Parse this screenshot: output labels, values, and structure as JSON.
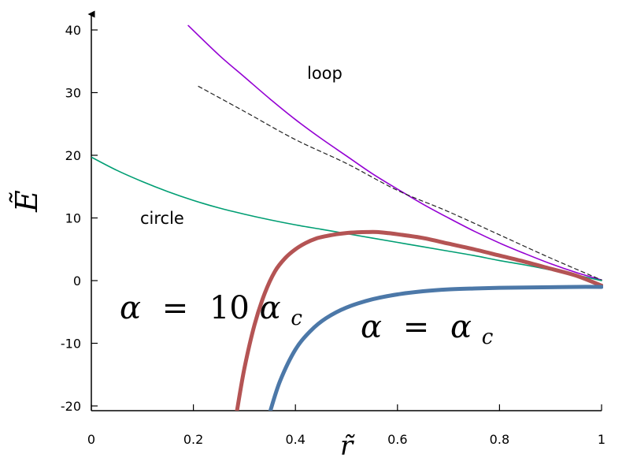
{
  "chart_data": {
    "type": "line",
    "xlabel": "r̃",
    "ylabel": "Ẽ",
    "xlim": [
      0,
      1
    ],
    "ylim": [
      -21,
      44
    ],
    "grid": false,
    "x_ticks": [
      "0",
      "0.2",
      "0.4",
      "0.6",
      "0.8",
      "1"
    ],
    "y_ticks": [
      "-20",
      "-10",
      "0",
      "10",
      "20",
      "30",
      "40"
    ],
    "series": [
      {
        "name": "loop",
        "color": "#9400d3",
        "style": "solid",
        "x": [
          0.19,
          0.25,
          0.3,
          0.35,
          0.4,
          0.45,
          0.5,
          0.55,
          0.6,
          0.65,
          0.7,
          0.75,
          0.8,
          0.85,
          0.9,
          0.95,
          1.0
        ],
        "y": [
          40.7,
          36.0,
          32.5,
          29.0,
          25.7,
          22.7,
          19.9,
          17.1,
          14.6,
          12.2,
          10.0,
          7.9,
          6.0,
          4.3,
          2.7,
          1.3,
          0.1
        ]
      },
      {
        "name": "",
        "color": "#222222",
        "style": "dashed",
        "x": [
          0.21,
          0.3,
          0.4,
          0.5,
          0.6,
          0.7,
          0.8,
          0.9,
          1.0
        ],
        "y": [
          31.0,
          27.0,
          22.5,
          18.7,
          14.4,
          11.0,
          7.3,
          3.6,
          0.1
        ]
      },
      {
        "name": "circle",
        "color": "#009e73",
        "style": "solid",
        "x": [
          0.0,
          0.05,
          0.1,
          0.15,
          0.2,
          0.25,
          0.3,
          0.35,
          0.4,
          0.45,
          0.5,
          0.55,
          0.6,
          0.65,
          0.7,
          0.75,
          0.8,
          0.85,
          0.9,
          0.95,
          1.0
        ],
        "y": [
          19.7,
          17.6,
          15.8,
          14.2,
          12.8,
          11.6,
          10.6,
          9.7,
          8.9,
          8.2,
          7.5,
          6.8,
          6.1,
          5.4,
          4.7,
          4.0,
          3.2,
          2.5,
          1.7,
          0.9,
          0.0
        ]
      },
      {
        "name": "α = 10α_c",
        "color": "#b45454",
        "style": "thick",
        "x": [
          0.285,
          0.3,
          0.32,
          0.34,
          0.36,
          0.38,
          0.4,
          0.42,
          0.44,
          0.46,
          0.48,
          0.5,
          0.52,
          0.54,
          0.56,
          0.58,
          0.6,
          0.65,
          0.7,
          0.75,
          0.8,
          0.85,
          0.9,
          0.95,
          1.0
        ],
        "y": [
          -21.0,
          -14.0,
          -7.0,
          -2.0,
          1.5,
          3.6,
          5.0,
          6.0,
          6.7,
          7.1,
          7.4,
          7.6,
          7.7,
          7.75,
          7.75,
          7.6,
          7.4,
          6.8,
          5.9,
          5.0,
          4.0,
          3.0,
          1.9,
          0.8,
          -0.8
        ]
      },
      {
        "name": "α = α_c",
        "color": "#4c78a8",
        "style": "thick",
        "x": [
          0.35,
          0.37,
          0.4,
          0.43,
          0.46,
          0.5,
          0.55,
          0.6,
          0.65,
          0.7,
          0.75,
          0.8,
          0.85,
          0.9,
          0.95,
          1.0
        ],
        "y": [
          -21.0,
          -16.0,
          -11.0,
          -8.0,
          -6.0,
          -4.3,
          -3.0,
          -2.2,
          -1.7,
          -1.4,
          -1.25,
          -1.15,
          -1.1,
          -1.05,
          -1.0,
          -1.0
        ]
      }
    ],
    "annotations": {
      "loop": "loop",
      "circle": "circle",
      "alpha_10": {
        "lhs": "α",
        "eq": "=",
        "num": "10",
        "rhs": "α",
        "sub": "c"
      },
      "alpha_c": {
        "lhs": "α",
        "eq": "=",
        "rhs": "α",
        "sub": "c"
      }
    }
  }
}
